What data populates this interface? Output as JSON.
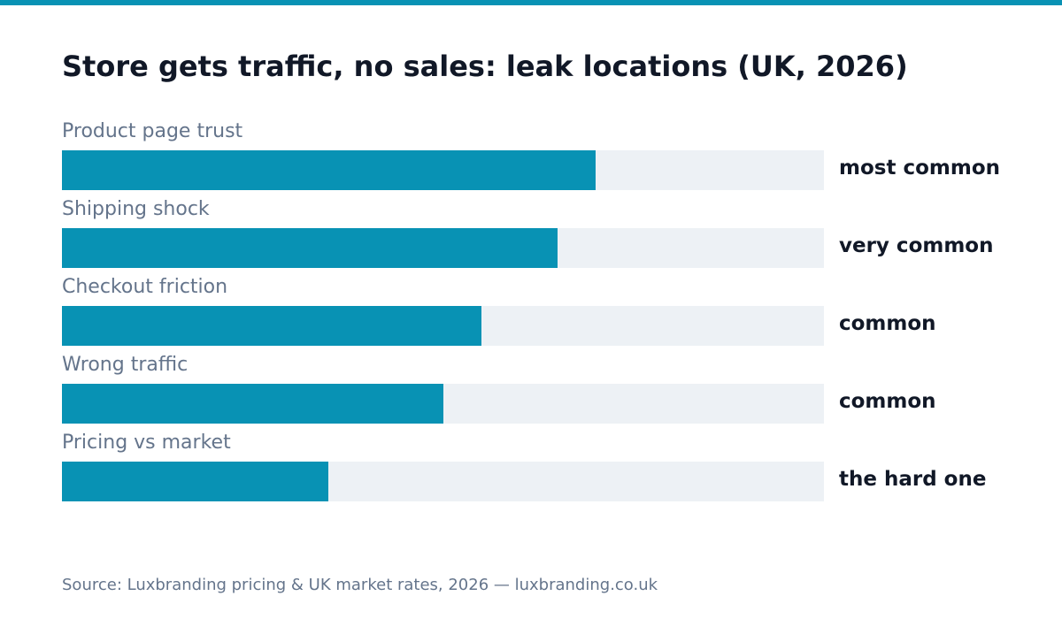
{
  "colors": {
    "accent": "#0892b4",
    "track": "#edf1f5",
    "text": "#111827",
    "muted": "#64748b"
  },
  "chart_data": {
    "type": "bar",
    "orientation": "horizontal",
    "title": "Store gets traffic, no sales: leak locations (UK, 2026)",
    "categories": [
      "Product page trust",
      "Shipping shock",
      "Checkout friction",
      "Wrong traffic",
      "Pricing vs market"
    ],
    "values": [
      0.7,
      0.65,
      0.55,
      0.5,
      0.35
    ],
    "value_labels": [
      "most common",
      "very common",
      "common",
      "common",
      "the hard one"
    ],
    "xlim": [
      0,
      1
    ],
    "grid": false,
    "legend": "none"
  },
  "source": "Source: Luxbranding pricing & UK market rates, 2026 — luxbranding.co.uk"
}
